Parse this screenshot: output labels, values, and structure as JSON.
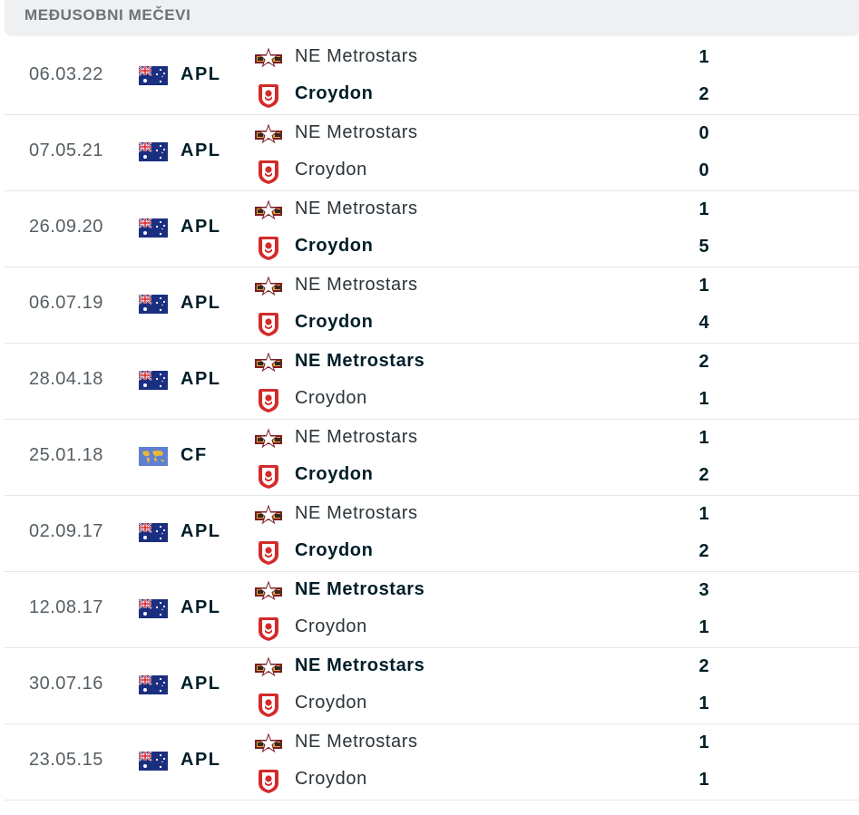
{
  "header": {
    "title": "MEĐUSOBNI MEČEVI"
  },
  "matches": [
    {
      "date": "06.03.22",
      "flag": "australia-flag-icon",
      "league": "APL",
      "home": "NE Metrostars",
      "away": "Croydon",
      "home_score": "1",
      "away_score": "2",
      "winner": "away"
    },
    {
      "date": "07.05.21",
      "flag": "australia-flag-icon",
      "league": "APL",
      "home": "NE Metrostars",
      "away": "Croydon",
      "home_score": "0",
      "away_score": "0",
      "winner": "none"
    },
    {
      "date": "26.09.20",
      "flag": "australia-flag-icon",
      "league": "APL",
      "home": "NE Metrostars",
      "away": "Croydon",
      "home_score": "1",
      "away_score": "5",
      "winner": "away"
    },
    {
      "date": "06.07.19",
      "flag": "australia-flag-icon",
      "league": "APL",
      "home": "NE Metrostars",
      "away": "Croydon",
      "home_score": "1",
      "away_score": "4",
      "winner": "away"
    },
    {
      "date": "28.04.18",
      "flag": "australia-flag-icon",
      "league": "APL",
      "home": "NE Metrostars",
      "away": "Croydon",
      "home_score": "2",
      "away_score": "1",
      "winner": "home"
    },
    {
      "date": "25.01.18",
      "flag": "world-flag-icon",
      "league": "CF",
      "home": "NE Metrostars",
      "away": "Croydon",
      "home_score": "1",
      "away_score": "2",
      "winner": "away"
    },
    {
      "date": "02.09.17",
      "flag": "australia-flag-icon",
      "league": "APL",
      "home": "NE Metrostars",
      "away": "Croydon",
      "home_score": "1",
      "away_score": "2",
      "winner": "away"
    },
    {
      "date": "12.08.17",
      "flag": "australia-flag-icon",
      "league": "APL",
      "home": "NE Metrostars",
      "away": "Croydon",
      "home_score": "3",
      "away_score": "1",
      "winner": "home"
    },
    {
      "date": "30.07.16",
      "flag": "australia-flag-icon",
      "league": "APL",
      "home": "NE Metrostars",
      "away": "Croydon",
      "home_score": "2",
      "away_score": "1",
      "winner": "home"
    },
    {
      "date": "23.05.15",
      "flag": "australia-flag-icon",
      "league": "APL",
      "home": "NE Metrostars",
      "away": "Croydon",
      "home_score": "1",
      "away_score": "1",
      "winner": "none"
    }
  ],
  "colors": {
    "header_bg": "#eef0f2",
    "text_primary": "#001e28",
    "text_secondary": "#555e63",
    "divider": "#e4e6e8",
    "croydon_red": "#d42a2a",
    "metrostars_maroon": "#7a1c24",
    "metrostars_gold": "#e0a82e"
  }
}
